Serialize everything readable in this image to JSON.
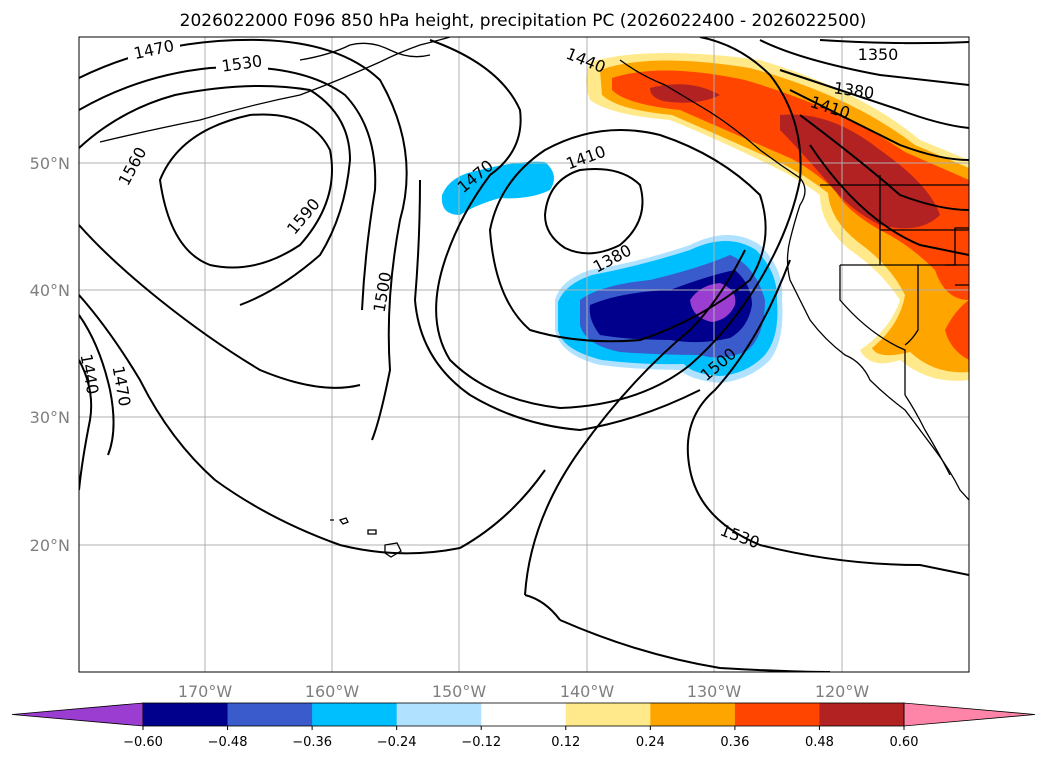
{
  "chart_data": {
    "type": "contour_map",
    "title": "2026022000 F096 850 hPa height, precipitation PC (2026022400 - 2026022500)",
    "lon_ticks": [
      "170°W",
      "160°W",
      "150°W",
      "140°W",
      "130°W",
      "120°W"
    ],
    "lat_ticks": [
      "50°N",
      "40°N",
      "30°N",
      "20°N"
    ],
    "lon_range": [
      -180,
      -110
    ],
    "lat_range": [
      10,
      60
    ],
    "contour_levels": [
      1350,
      1380,
      1410,
      1440,
      1470,
      1500,
      1530,
      1560,
      1590
    ],
    "contour_labels": [
      "1470",
      "1530",
      "1560",
      "1590",
      "1500",
      "1440",
      "1470",
      "1440",
      "1410",
      "1470",
      "1380",
      "1500",
      "1530",
      "1350",
      "1380",
      "1410"
    ],
    "colorbar": {
      "ticks": [
        "−0.60",
        "−0.48",
        "−0.36",
        "−0.24",
        "−0.12",
        "0.12",
        "0.24",
        "0.36",
        "0.48",
        "0.60"
      ],
      "colors": [
        "#9b3dd1",
        "#00008c",
        "#3a5bcc",
        "#00bfff",
        "#b0e2ff",
        "#ffffff",
        "#ffe98a",
        "#ffa500",
        "#ff4500",
        "#b22222",
        "#ff85a8"
      ]
    }
  }
}
